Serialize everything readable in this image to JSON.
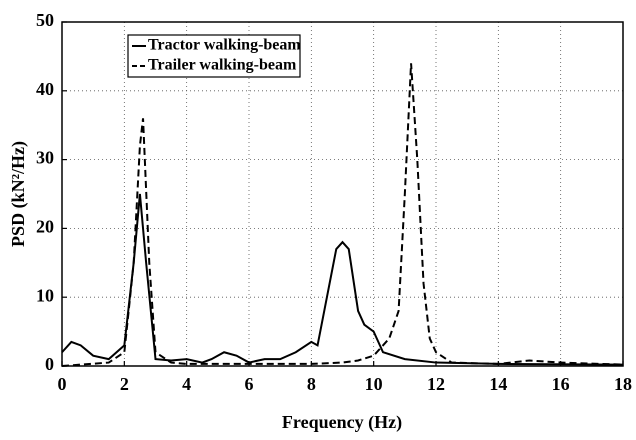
{
  "chart_data": {
    "type": "line",
    "xlabel": "Frequency (Hz)",
    "ylabel": "PSD (kN²/Hz)",
    "xlim": [
      0,
      18
    ],
    "xticks": [
      0,
      2,
      4,
      6,
      8,
      10,
      12,
      14,
      16,
      18
    ],
    "ylim": [
      0,
      50
    ],
    "yticks": [
      0,
      10,
      20,
      30,
      40,
      50
    ],
    "grid": true,
    "legend": "upper left",
    "series": [
      {
        "name": "Tractor walking-beam",
        "color": "#000000",
        "dash": "solid",
        "x": [
          0,
          0.3,
          0.6,
          1,
          1.5,
          2,
          2.3,
          2.5,
          2.7,
          3,
          3.5,
          4,
          4.5,
          4.8,
          5.2,
          5.6,
          6,
          6.5,
          7,
          7.5,
          8,
          8.2,
          8.5,
          8.8,
          9,
          9.2,
          9.5,
          9.7,
          10,
          10.3,
          11,
          12,
          14,
          18
        ],
        "values": [
          2,
          3.5,
          3,
          1.5,
          1,
          3,
          15,
          25,
          15,
          1,
          0.8,
          1,
          0.5,
          1,
          2,
          1.5,
          0.5,
          1,
          1,
          2,
          3.5,
          3,
          10,
          17,
          18,
          17,
          8,
          6,
          5,
          2,
          1,
          0.5,
          0.3,
          0.2
        ]
      },
      {
        "name": "Trailer walking-beam",
        "color": "#000000",
        "dash": "dashed",
        "x": [
          0,
          1.5,
          2,
          2.3,
          2.5,
          2.6,
          2.8,
          3,
          3.5,
          4,
          8,
          9,
          9.5,
          10,
          10.5,
          10.8,
          11,
          11.2,
          11.4,
          11.6,
          11.8,
          12,
          12.5,
          14,
          15,
          16,
          18
        ],
        "values": [
          0,
          0.5,
          2,
          15,
          32,
          36,
          15,
          2,
          0.5,
          0.3,
          0.3,
          0.5,
          0.8,
          1.5,
          4,
          8,
          25,
          44,
          30,
          12,
          4,
          2,
          0.5,
          0.3,
          0.8,
          0.5,
          0.2
        ]
      }
    ]
  }
}
